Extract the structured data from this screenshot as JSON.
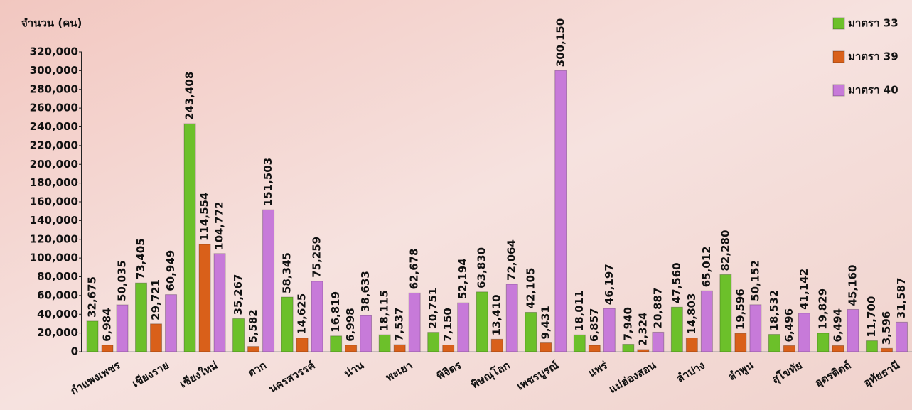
{
  "chart_data": {
    "type": "bar",
    "y_label": "จำนวน (คน)",
    "categories": [
      "กำแพงเพชร",
      "เชียงราย",
      "เชียงใหม่",
      "ตาก",
      "นครสวรรค์",
      "น่าน",
      "พะเยา",
      "พิจิตร",
      "พิษณุโลก",
      "เพชรบูรณ์",
      "แพร่",
      "แม่ฮ่องสอน",
      "ลำปาง",
      "ลำพูน",
      "สุโขทัย",
      "อุตรดิตถ์",
      "อุทัยธานี"
    ],
    "series": [
      {
        "name": "มาตรา 33",
        "color": "#6cc02a",
        "values": [
          32675,
          73405,
          243408,
          35267,
          58345,
          16819,
          18115,
          20751,
          63830,
          42105,
          18011,
          7940,
          47560,
          82280,
          18532,
          19829,
          11700
        ],
        "value_labels": [
          "32,675",
          "73,405",
          "243,408",
          "35,267",
          "58,345",
          "16,819",
          "18,115",
          "20,751",
          "63,830",
          "42,105",
          "18,011",
          "7,940",
          "47,560",
          "82,280",
          "18,532",
          "19,829",
          "11,700"
        ]
      },
      {
        "name": "มาตรา 39",
        "color": "#d9601a",
        "values": [
          6984,
          29721,
          114554,
          5582,
          14625,
          6998,
          7537,
          7150,
          13410,
          9431,
          6857,
          2324,
          14803,
          19596,
          6496,
          6494,
          3596
        ],
        "value_labels": [
          "6,984",
          "29,721",
          "114,554",
          "5,582",
          "14,625",
          "6,998",
          "7,537",
          "7,150",
          "13,410",
          "9,431",
          "6,857",
          "2,324",
          "14,803",
          "19,596",
          "6,496",
          "6,494",
          "3,596"
        ]
      },
      {
        "name": "มาตรา 40",
        "color": "#c77ad9",
        "values": [
          50035,
          60949,
          104772,
          151503,
          75259,
          38633,
          62678,
          52194,
          72064,
          300150,
          46197,
          20887,
          65012,
          50152,
          41142,
          45160,
          31587
        ],
        "value_labels": [
          "50,035",
          "60,949",
          "104,772",
          "151,503",
          "75,259",
          "38,633",
          "62,678",
          "52,194",
          "72,064",
          "300,150",
          "46,197",
          "20,887",
          "65,012",
          "50,152",
          "41,142",
          "45,160",
          "31,587"
        ]
      }
    ],
    "ylim": [
      0,
      320000
    ],
    "yticks": [
      0,
      {
        "value": 20000,
        "label": "20,000"
      },
      {
        "value": 40000,
        "label": "40,000"
      },
      {
        "value": 60000,
        "label": "60,000"
      },
      {
        "value": 80000,
        "label": "80,000"
      },
      {
        "value": 100000,
        "label": "100,000"
      },
      {
        "value": 120000,
        "label": "120,000"
      },
      {
        "value": 140000,
        "label": "140,000"
      },
      {
        "value": 160000,
        "label": "160,000"
      },
      {
        "value": 180000,
        "label": "180,000"
      },
      {
        "value": 200000,
        "label": "200,000"
      },
      {
        "value": 220000,
        "label": "220,000"
      },
      {
        "value": 240000,
        "label": "240,000"
      },
      {
        "value": 260000,
        "label": "260,000"
      },
      {
        "value": 280000,
        "label": "280,000"
      },
      {
        "value": 300000,
        "label": "300,000"
      },
      {
        "value": 320000,
        "label": "320,000"
      }
    ],
    "grid": false,
    "legend": "top-right"
  }
}
